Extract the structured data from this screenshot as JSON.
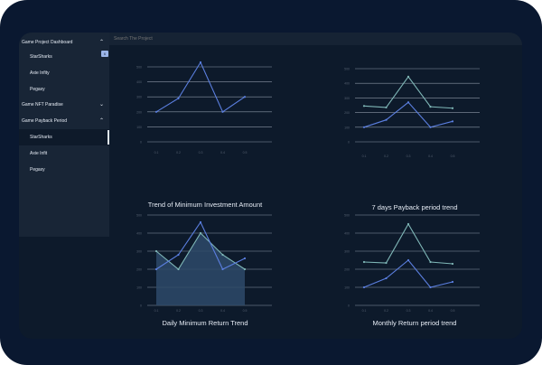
{
  "sidebar": {
    "badge": "6",
    "items": [
      {
        "label": "Game Project Dashboard",
        "chevron": "⌃",
        "sub": false,
        "active": false
      },
      {
        "label": "StarSharks",
        "chevron": "",
        "sub": true,
        "active": false
      },
      {
        "label": "Axie Infity",
        "chevron": "",
        "sub": true,
        "active": false
      },
      {
        "label": "Pegaxy",
        "chevron": "",
        "sub": true,
        "active": false
      },
      {
        "label": "Game NFT Paradise",
        "chevron": "⌄",
        "sub": false,
        "active": false
      },
      {
        "label": "Game Payback Period",
        "chevron": "⌃",
        "sub": false,
        "active": false
      },
      {
        "label": "StarSharks",
        "chevron": "",
        "sub": true,
        "active": true
      },
      {
        "label": "Axie Infit",
        "chevron": "",
        "sub": true,
        "active": false
      },
      {
        "label": "Pegaxy",
        "chevron": "",
        "sub": true,
        "active": false
      }
    ]
  },
  "search": {
    "placeholder": "Search The Project"
  },
  "colors": {
    "series_primary": "#5b7fe0",
    "series_secondary": "#7fb7b7",
    "area_fill": "#2e4a6a",
    "grid": "#8c96a6"
  },
  "chart_data": [
    {
      "type": "line",
      "title": "Trend of Minimum Investment Amount",
      "categories": [
        "0.1",
        "0.2",
        "0.3",
        "0.4",
        "0.5"
      ],
      "yticks": [
        "0",
        "100",
        "200",
        "300",
        "400",
        "500"
      ],
      "ylim": [
        0,
        500
      ],
      "grid": true,
      "series": [
        {
          "values": [
            200,
            290,
            530,
            200,
            300
          ],
          "color": "#5b7fe0",
          "fill": false
        }
      ]
    },
    {
      "type": "line",
      "title": "7 days Payback period trend",
      "categories": [
        "0.1",
        "0.2",
        "0.3",
        "0.4",
        "0.5"
      ],
      "yticks": [
        "0",
        "100",
        "200",
        "300",
        "400",
        "500"
      ],
      "ylim": [
        0,
        500
      ],
      "grid": true,
      "series": [
        {
          "values": [
            245,
            235,
            445,
            240,
            230
          ],
          "color": "#7fb7b7",
          "fill": false
        },
        {
          "values": [
            100,
            150,
            270,
            100,
            140
          ],
          "color": "#5b7fe0",
          "fill": false
        }
      ]
    },
    {
      "type": "area",
      "title": "Daily Minimum Return Trend",
      "categories": [
        "0.1",
        "0.2",
        "0.3",
        "0.4",
        "0.5"
      ],
      "yticks": [
        "0",
        "100",
        "200",
        "300",
        "400",
        "500"
      ],
      "ylim": [
        0,
        500
      ],
      "grid": true,
      "series": [
        {
          "values": [
            300,
            200,
            400,
            280,
            200
          ],
          "color": "#7fb7b7",
          "fill": true
        },
        {
          "values": [
            200,
            280,
            460,
            200,
            260
          ],
          "color": "#5b7fe0",
          "fill": false
        }
      ]
    },
    {
      "type": "line",
      "title": "Monthly Return period trend",
      "categories": [
        "0.1",
        "0.2",
        "0.3",
        "0.4",
        "0.5"
      ],
      "yticks": [
        "0",
        "100",
        "200",
        "300",
        "400",
        "500"
      ],
      "ylim": [
        0,
        500
      ],
      "grid": true,
      "series": [
        {
          "values": [
            240,
            235,
            450,
            240,
            230
          ],
          "color": "#7fb7b7",
          "fill": false
        },
        {
          "values": [
            100,
            150,
            250,
            100,
            130
          ],
          "color": "#5b7fe0",
          "fill": false
        }
      ]
    }
  ]
}
